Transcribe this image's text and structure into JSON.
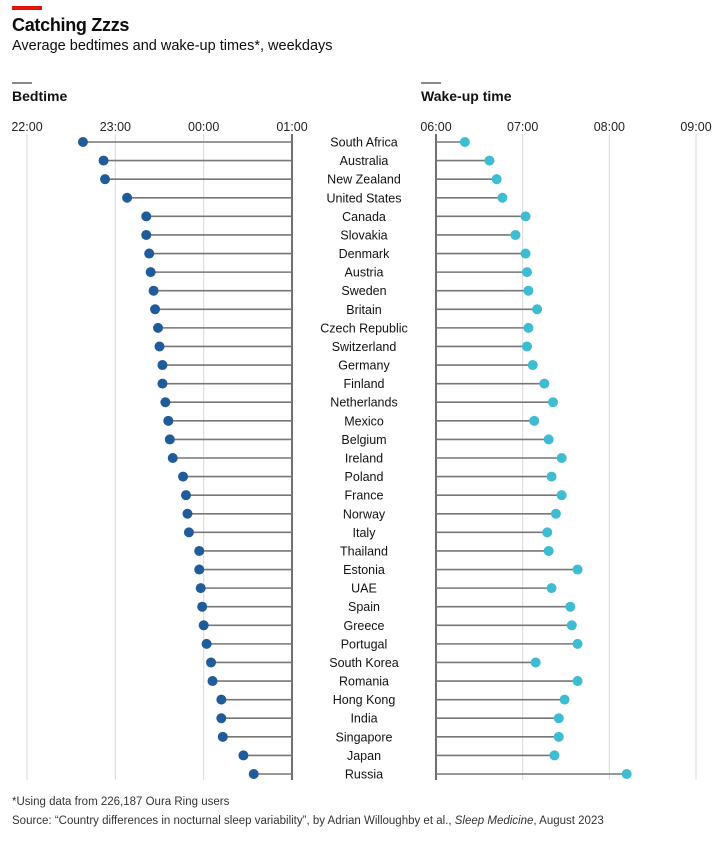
{
  "header": {
    "title": "Catching Zzzs",
    "subtitle": "Average bedtimes and wake-up times*, weekdays"
  },
  "colors": {
    "bed": "#1f5c99",
    "wake": "#3ebcd2",
    "accent": "#e3120b"
  },
  "footer": {
    "note": "*Using data from 226,187 Oura Ring users",
    "source_prefix": "Source: “Country differences in nocturnal sleep variability”, by Adrian Willoughby et al., ",
    "source_journal": "Sleep Medicine",
    "source_suffix": ", August 2023"
  },
  "chart_data": [
    {
      "type": "lollipop",
      "title": "Bedtime",
      "unit": "minutes after 22:00",
      "ticks": [
        "22:00",
        "23:00",
        "00:00",
        "01:00"
      ],
      "xlim": [
        0,
        180
      ],
      "baseline": 180,
      "categories": [
        "South Africa",
        "Australia",
        "New Zealand",
        "United States",
        "Canada",
        "Slovakia",
        "Denmark",
        "Austria",
        "Sweden",
        "Britain",
        "Czech Republic",
        "Switzerland",
        "Germany",
        "Finland",
        "Netherlands",
        "Mexico",
        "Belgium",
        "Ireland",
        "Poland",
        "France",
        "Norway",
        "Italy",
        "Thailand",
        "Estonia",
        "UAE",
        "Spain",
        "Greece",
        "Portugal",
        "South Korea",
        "Romania",
        "Hong Kong",
        "India",
        "Singapore",
        "Japan",
        "Russia"
      ],
      "values": [
        38,
        52,
        53,
        68,
        81,
        81,
        83,
        84,
        86,
        87,
        89,
        90,
        92,
        92,
        94,
        96,
        97,
        99,
        106,
        108,
        109,
        110,
        117,
        117,
        118,
        119,
        120,
        122,
        125,
        126,
        132,
        132,
        133,
        147,
        154
      ]
    },
    {
      "type": "lollipop",
      "title": "Wake-up time",
      "unit": "minutes after 06:00",
      "ticks": [
        "06:00",
        "07:00",
        "08:00",
        "09:00"
      ],
      "xlim": [
        0,
        180
      ],
      "baseline": 0,
      "values": [
        20,
        37,
        42,
        46,
        62,
        55,
        62,
        63,
        64,
        70,
        64,
        63,
        67,
        75,
        81,
        68,
        78,
        87,
        80,
        87,
        83,
        77,
        78,
        98,
        80,
        93,
        94,
        98,
        69,
        98,
        89,
        85,
        85,
        82,
        132
      ]
    }
  ]
}
